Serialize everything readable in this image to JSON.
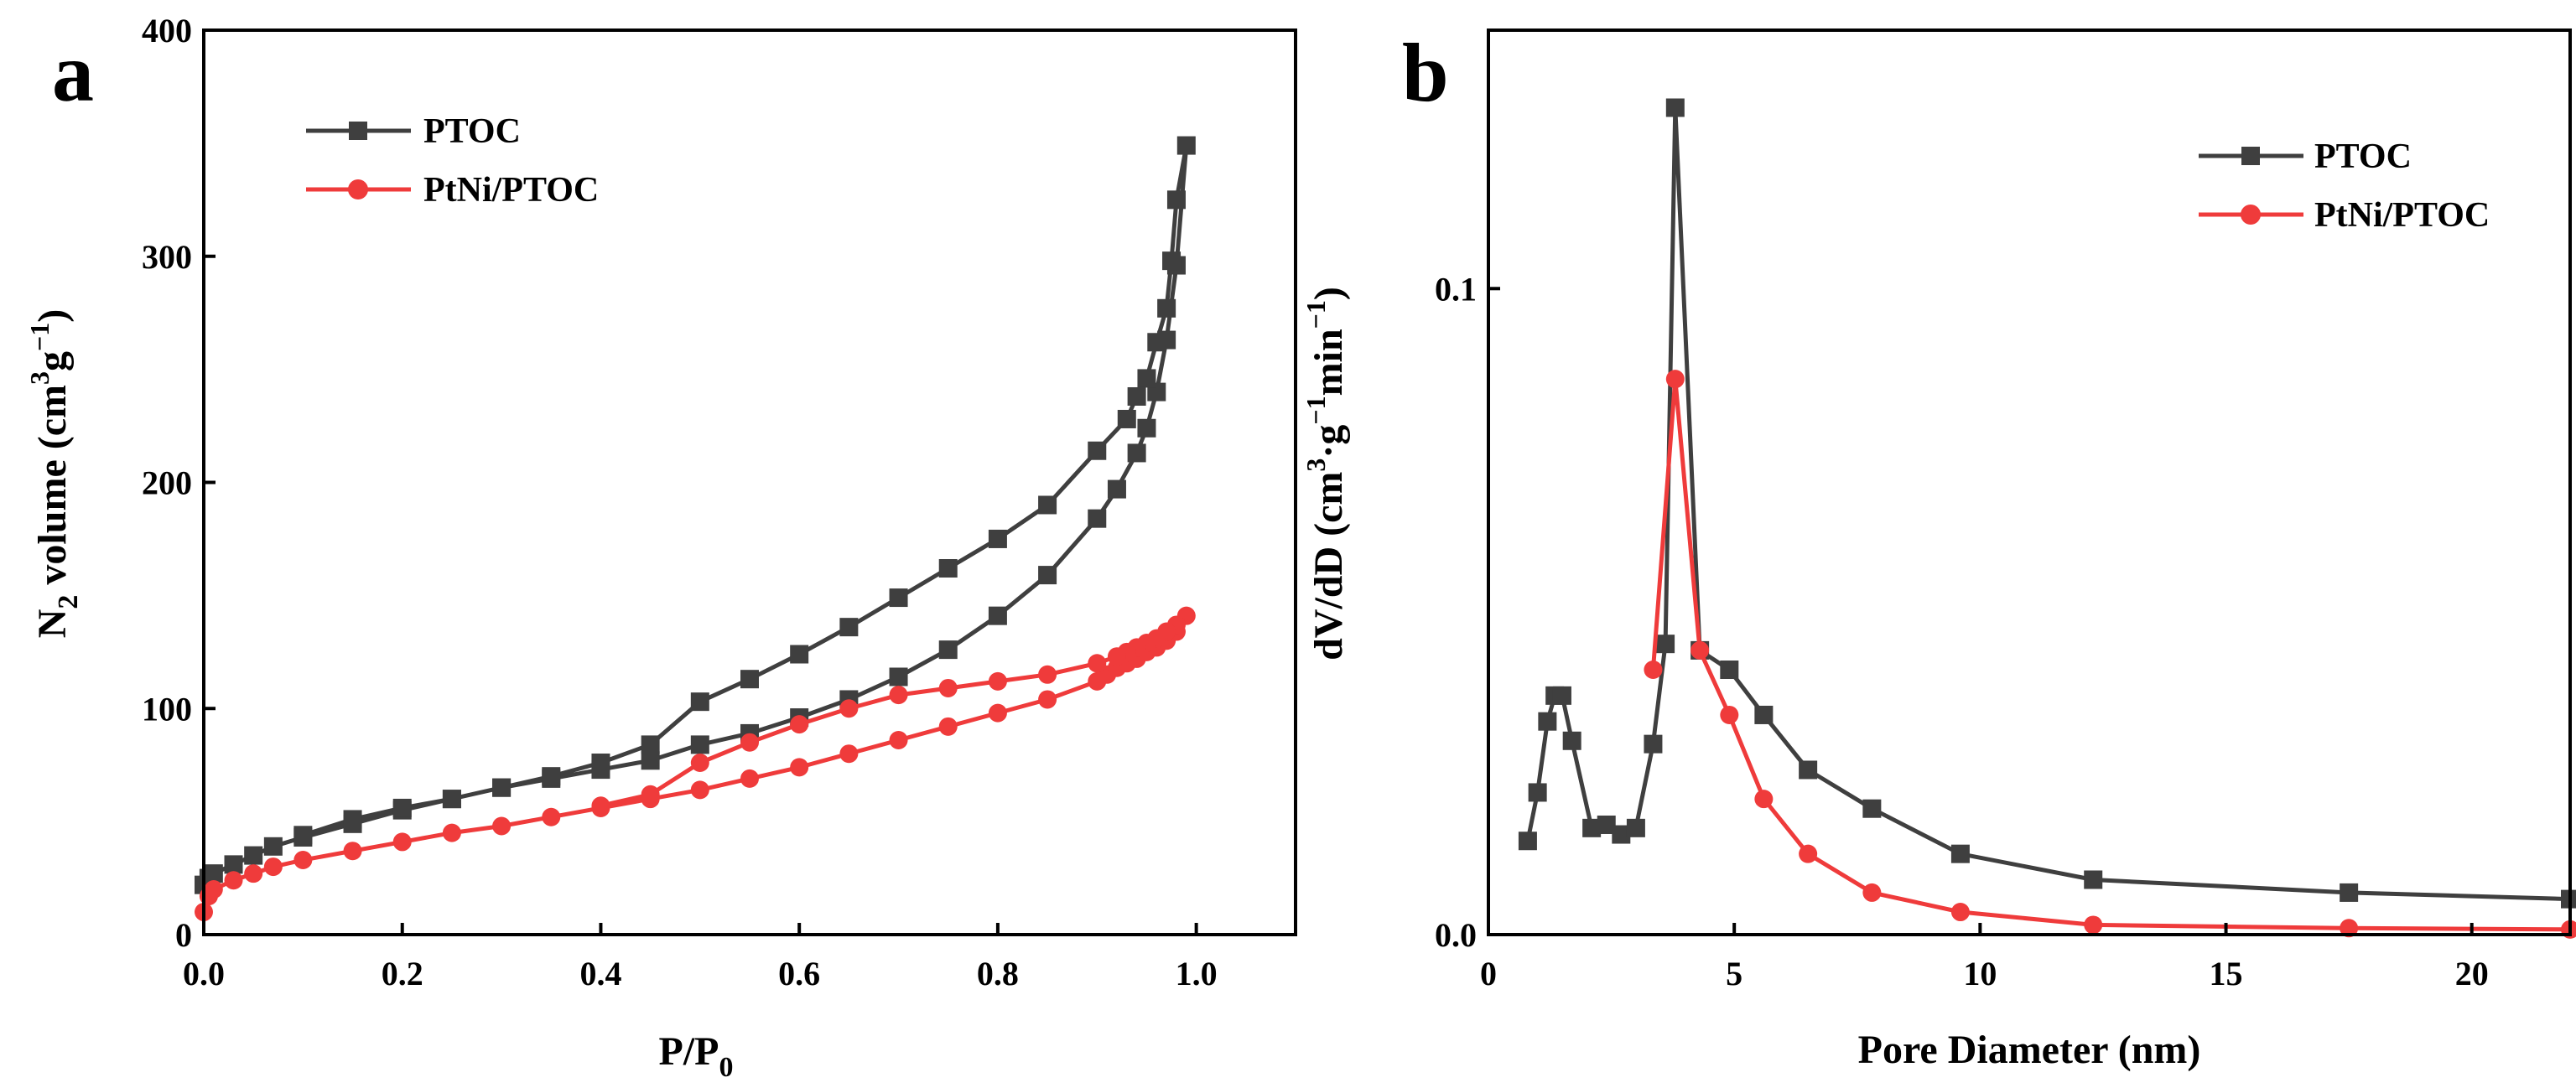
{
  "colors": {
    "ptoc": "#3f3f3f",
    "ptni": "#ef3b3b",
    "axis": "#000000"
  },
  "chart_data": [
    {
      "type": "line",
      "panel_label": "a",
      "xlabel": "P/P",
      "xlabel_sub": "0",
      "ylabel_pre": "N",
      "ylabel_sub": "2",
      "ylabel_mid": " volume (cm",
      "ylabel_sup3": "3",
      "ylabel_g": "g",
      "ylabel_supm1": "−1",
      "ylabel_end": ")",
      "xlim": [
        0,
        1.1
      ],
      "ylim": [
        0,
        400
      ],
      "xticks": [
        "0.0",
        "0.2",
        "0.4",
        "0.6",
        "0.8",
        "1.0"
      ],
      "xtick_values": [
        0,
        0.2,
        0.4,
        0.6,
        0.8,
        1.0
      ],
      "yticks": [
        "0",
        "100",
        "200",
        "300",
        "400"
      ],
      "ytick_values": [
        0,
        100,
        200,
        300,
        400
      ],
      "legend": {
        "placement": "top-left",
        "entries": [
          "PTOC",
          "PtNi/PTOC"
        ]
      },
      "series": [
        {
          "name": "PTOC",
          "marker": "square",
          "color_key": "ptoc",
          "x": [
            0.0,
            0.005,
            0.01,
            0.03,
            0.05,
            0.07,
            0.1,
            0.15,
            0.2,
            0.25,
            0.3,
            0.35,
            0.4,
            0.45,
            0.5,
            0.55,
            0.6,
            0.65,
            0.7,
            0.75,
            0.8,
            0.85,
            0.9,
            0.92,
            0.94,
            0.95,
            0.96,
            0.97,
            0.98,
            0.99,
            0.98,
            0.975,
            0.97,
            0.96,
            0.95,
            0.94,
            0.93,
            0.9,
            0.85,
            0.8,
            0.75,
            0.7,
            0.65,
            0.6,
            0.55,
            0.5,
            0.45,
            0.4,
            0.35,
            0.3,
            0.25,
            0.2,
            0.15,
            0.1
          ],
          "y": [
            22,
            25,
            27,
            31,
            35,
            39,
            43,
            49,
            55,
            60,
            65,
            69,
            73,
            77,
            84,
            89,
            96,
            104,
            114,
            126,
            141,
            159,
            184,
            197,
            213,
            224,
            240,
            263,
            296,
            349,
            325,
            298,
            277,
            262,
            246,
            238,
            228,
            214,
            190,
            175,
            162,
            149,
            136,
            124,
            113,
            103,
            84,
            76,
            70,
            65,
            60,
            56,
            51,
            44
          ]
        },
        {
          "name": "PtNi/PTOC",
          "marker": "circle",
          "color_key": "ptni",
          "x": [
            0.0,
            0.005,
            0.01,
            0.03,
            0.05,
            0.07,
            0.1,
            0.15,
            0.2,
            0.25,
            0.3,
            0.35,
            0.4,
            0.45,
            0.5,
            0.55,
            0.6,
            0.65,
            0.7,
            0.75,
            0.8,
            0.85,
            0.9,
            0.91,
            0.92,
            0.93,
            0.94,
            0.95,
            0.96,
            0.97,
            0.98,
            0.99,
            0.98,
            0.97,
            0.96,
            0.95,
            0.94,
            0.93,
            0.92,
            0.9,
            0.85,
            0.8,
            0.75,
            0.7,
            0.65,
            0.6,
            0.55,
            0.5,
            0.45,
            0.4
          ],
          "y": [
            10,
            17,
            20,
            24,
            27,
            30,
            33,
            37,
            41,
            45,
            48,
            52,
            56,
            60,
            64,
            69,
            74,
            80,
            86,
            92,
            98,
            104,
            112,
            115,
            118,
            120,
            122,
            125,
            127,
            130,
            134,
            141,
            137,
            134,
            131,
            129,
            127,
            125,
            123,
            120,
            115,
            112,
            109,
            106,
            100,
            93,
            85,
            76,
            62,
            57
          ]
        }
      ]
    },
    {
      "type": "line",
      "panel_label": "b",
      "xlabel": "Pore Diameter (nm)",
      "ylabel_b_pre": "dV/dD (cm",
      "ylabel_b_sup3": "3",
      "ylabel_b_g": "·g",
      "ylabel_b_supm1a": "−1",
      "ylabel_b_min": "min",
      "ylabel_b_supm1b": "−1",
      "ylabel_b_end": ")",
      "xlim": [
        0,
        22
      ],
      "ylim": [
        0,
        0.14
      ],
      "xticks": [
        "0",
        "5",
        "10",
        "15",
        "20"
      ],
      "xtick_values": [
        0,
        5,
        10,
        15,
        20
      ],
      "yticks": [
        "0.0",
        "0.1"
      ],
      "ytick_values": [
        0,
        0.1
      ],
      "legend": {
        "placement": "top-right",
        "entries": [
          "PTOC",
          "PtNi/PTOC"
        ]
      },
      "series": [
        {
          "name": "PTOC",
          "marker": "square",
          "color_key": "ptoc",
          "x": [
            0.8,
            1.0,
            1.2,
            1.35,
            1.5,
            1.7,
            2.1,
            2.4,
            2.7,
            3.0,
            3.35,
            3.6,
            3.8,
            4.3,
            4.9,
            5.6,
            6.5,
            7.8,
            9.6,
            12.3,
            17.5,
            22
          ],
          "y": [
            0.0145,
            0.022,
            0.033,
            0.037,
            0.037,
            0.03,
            0.0165,
            0.017,
            0.0155,
            0.0165,
            0.0295,
            0.045,
            0.128,
            0.044,
            0.041,
            0.034,
            0.0255,
            0.0195,
            0.0125,
            0.0085,
            0.0065,
            0.0055
          ]
        },
        {
          "name": "PtNi/PTOC",
          "marker": "circle",
          "color_key": "ptni",
          "x": [
            3.35,
            3.8,
            4.3,
            4.9,
            5.6,
            6.5,
            7.8,
            9.6,
            12.3,
            17.5,
            22
          ],
          "y": [
            0.041,
            0.086,
            0.044,
            0.034,
            0.021,
            0.0125,
            0.0065,
            0.0035,
            0.0015,
            0.001,
            0.0008
          ]
        }
      ]
    }
  ]
}
